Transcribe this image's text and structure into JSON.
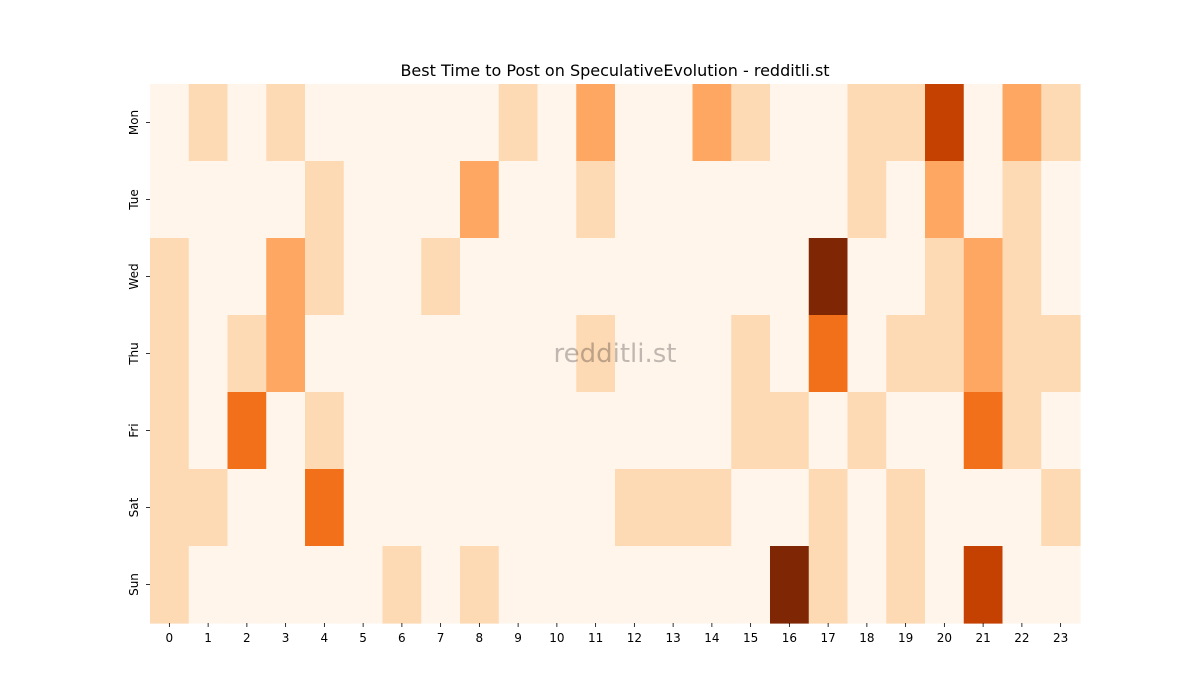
{
  "chart_data": {
    "type": "heatmap",
    "title": "Best Time to Post on SpeculativeEvolution - redditli.st",
    "xlabel": "",
    "ylabel": "",
    "x_ticks": [
      "0",
      "1",
      "2",
      "3",
      "4",
      "5",
      "6",
      "7",
      "8",
      "9",
      "10",
      "11",
      "12",
      "13",
      "14",
      "15",
      "16",
      "17",
      "18",
      "19",
      "20",
      "21",
      "22",
      "23"
    ],
    "y_ticks": [
      "Mon",
      "Tue",
      "Wed",
      "Thu",
      "Fri",
      "Sat",
      "Sun"
    ],
    "colormap": "Oranges",
    "color_range": [
      0,
      5
    ],
    "colorbar": false,
    "values": [
      [
        0,
        1,
        0,
        1,
        0,
        0,
        0,
        0,
        0,
        1,
        0,
        2,
        0,
        0,
        2,
        1,
        0,
        0,
        1,
        1,
        4,
        0,
        2,
        1
      ],
      [
        0,
        0,
        0,
        0,
        1,
        0,
        0,
        0,
        2,
        0,
        0,
        1,
        0,
        0,
        0,
        0,
        0,
        0,
        1,
        0,
        2,
        0,
        1,
        0
      ],
      [
        1,
        0,
        0,
        2,
        1,
        0,
        0,
        1,
        0,
        0,
        0,
        0,
        0,
        0,
        0,
        0,
        0,
        5,
        0,
        0,
        1,
        2,
        1,
        0
      ],
      [
        1,
        0,
        1,
        2,
        0,
        0,
        0,
        0,
        0,
        0,
        0,
        1,
        0,
        0,
        0,
        1,
        0,
        3,
        0,
        1,
        1,
        2,
        1,
        1
      ],
      [
        1,
        0,
        3,
        0,
        1,
        0,
        0,
        0,
        0,
        0,
        0,
        0,
        0,
        0,
        0,
        1,
        1,
        0,
        1,
        0,
        0,
        3,
        1,
        0
      ],
      [
        1,
        1,
        0,
        0,
        3,
        0,
        0,
        0,
        0,
        0,
        0,
        0,
        1,
        1,
        1,
        0,
        0,
        1,
        0,
        1,
        0,
        0,
        0,
        1
      ],
      [
        1,
        0,
        0,
        0,
        0,
        0,
        1,
        0,
        1,
        0,
        0,
        0,
        0,
        0,
        0,
        0,
        5,
        1,
        0,
        1,
        0,
        4,
        0,
        0
      ]
    ],
    "level_colors": [
      "#fff5eb",
      "#fdd9b4",
      "#fda762",
      "#f3701b",
      "#c54102",
      "#7f2704"
    ],
    "watermark": "redditli.st"
  }
}
